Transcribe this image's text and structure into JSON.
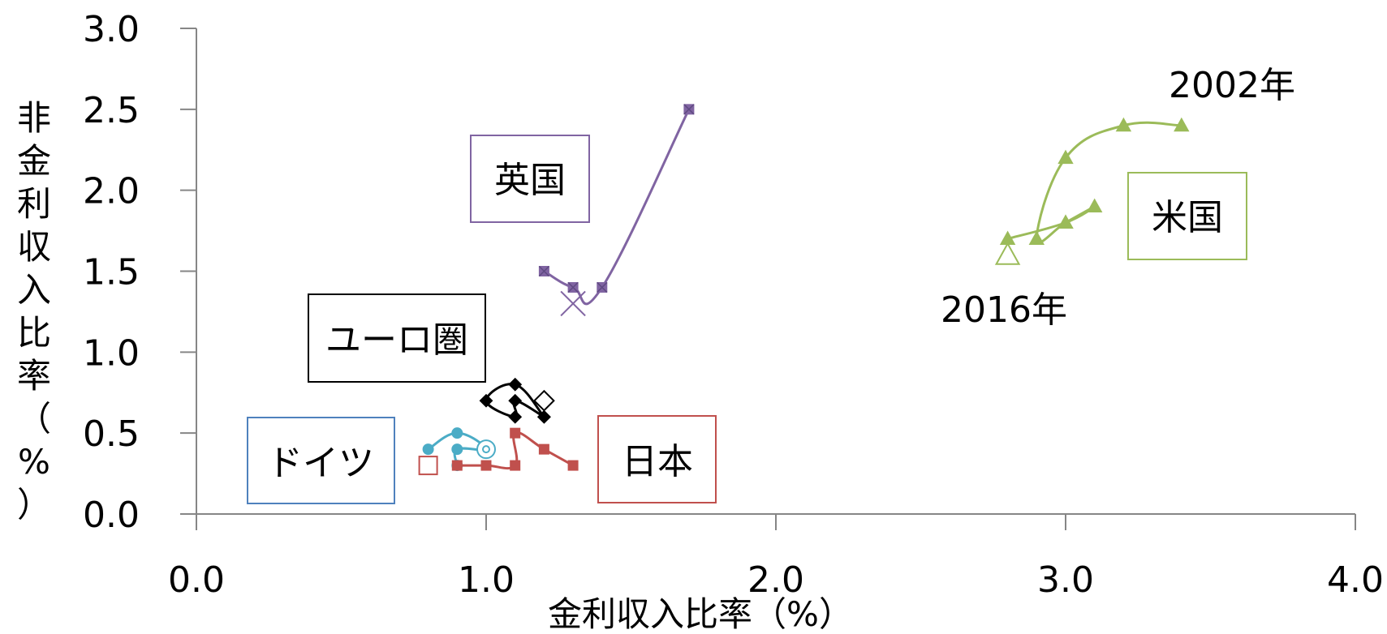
{
  "chart_data": {
    "type": "scatter",
    "xlabel": "金利収入比率（%）",
    "ylabel": "非金利収入比率（%）",
    "xlim": [
      0.0,
      4.0
    ],
    "ylim": [
      0.0,
      3.0
    ],
    "x_ticks": [
      "0.0",
      "1.0",
      "2.0",
      "3.0",
      "4.0"
    ],
    "y_ticks": [
      "0.0",
      "0.5",
      "1.0",
      "1.5",
      "2.0",
      "2.5",
      "3.0"
    ],
    "grid": false,
    "series": [
      {
        "name": "英国",
        "color": "#8064A2",
        "marker": "square-x",
        "points": [
          [
            1.7,
            2.5
          ],
          [
            1.4,
            1.4
          ],
          [
            1.3,
            1.4
          ],
          [
            1.2,
            1.5
          ],
          [
            1.3,
            1.3
          ]
        ]
      },
      {
        "name": "米国",
        "color": "#9BBB59",
        "marker": "triangle",
        "points": [
          [
            3.4,
            2.4
          ],
          [
            3.2,
            2.4
          ],
          [
            3.0,
            2.2
          ],
          [
            2.9,
            1.7
          ],
          [
            3.0,
            1.8
          ],
          [
            3.1,
            1.9
          ],
          [
            3.0,
            1.8
          ],
          [
            2.8,
            1.7
          ],
          [
            2.8,
            1.6
          ]
        ]
      },
      {
        "name": "ユーロ圏",
        "color": "#000000",
        "marker": "diamond",
        "points": [
          [
            1.2,
            0.6
          ],
          [
            1.1,
            0.8
          ],
          [
            1.0,
            0.7
          ],
          [
            1.1,
            0.6
          ],
          [
            1.1,
            0.7
          ],
          [
            1.2,
            0.6
          ],
          [
            1.2,
            0.7
          ]
        ]
      },
      {
        "name": "ドイツ",
        "color": "#4BACC6",
        "marker": "circle",
        "points": [
          [
            0.8,
            0.4
          ],
          [
            0.9,
            0.5
          ],
          [
            1.0,
            0.4
          ],
          [
            0.9,
            0.4
          ],
          [
            0.9,
            0.3
          ],
          [
            1.0,
            0.4
          ]
        ]
      },
      {
        "name": "日本",
        "color": "#C0504D",
        "marker": "square",
        "points": [
          [
            1.3,
            0.3
          ],
          [
            1.2,
            0.4
          ],
          [
            1.1,
            0.5
          ],
          [
            1.1,
            0.3
          ],
          [
            1.0,
            0.3
          ],
          [
            0.9,
            0.3
          ],
          [
            0.8,
            0.3
          ]
        ]
      }
    ],
    "annotations": {
      "start_year": "2002年",
      "end_year": "2016年"
    }
  }
}
